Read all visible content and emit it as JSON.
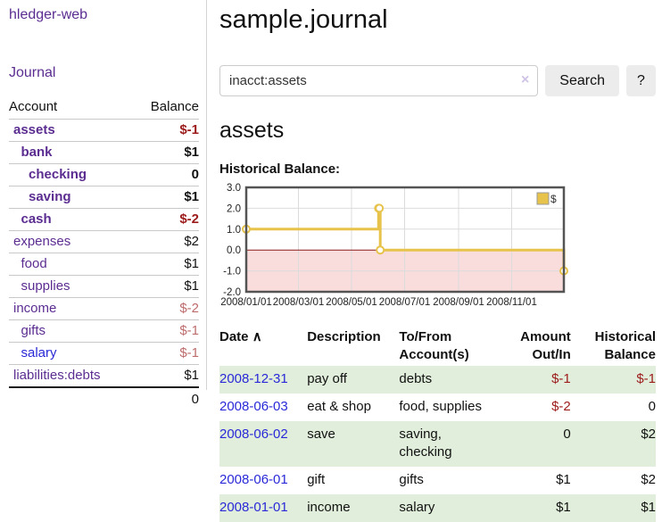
{
  "app": {
    "title": "hledger-web"
  },
  "sidebar": {
    "journal_link": "Journal",
    "accounts_table": {
      "headers": [
        "Account",
        "Balance"
      ],
      "rows": [
        {
          "account": "assets",
          "balance": "$-1",
          "depth": 1,
          "bold": true,
          "balance_style": "neg-strong",
          "link_style": "purple"
        },
        {
          "account": "bank",
          "balance": "$1",
          "depth": 2,
          "bold": true,
          "balance_style": "",
          "link_style": "purple"
        },
        {
          "account": "checking",
          "balance": "0",
          "depth": 3,
          "bold": true,
          "balance_style": "",
          "link_style": "purple"
        },
        {
          "account": "saving",
          "balance": "$1",
          "depth": 3,
          "bold": true,
          "balance_style": "",
          "link_style": "purple"
        },
        {
          "account": "cash",
          "balance": "$-2",
          "depth": 2,
          "bold": true,
          "balance_style": "neg-strong",
          "link_style": "purple"
        },
        {
          "account": "expenses",
          "balance": "$2",
          "depth": 1,
          "bold": false,
          "balance_style": "",
          "link_style": "purple"
        },
        {
          "account": "food",
          "balance": "$1",
          "depth": 2,
          "bold": false,
          "balance_style": "",
          "link_style": "purple"
        },
        {
          "account": "supplies",
          "balance": "$1",
          "depth": 2,
          "bold": false,
          "balance_style": "",
          "link_style": "purple"
        },
        {
          "account": "income",
          "balance": "$-2",
          "depth": 1,
          "bold": false,
          "balance_style": "neg-soft",
          "link_style": "purple"
        },
        {
          "account": "gifts",
          "balance": "$-1",
          "depth": 2,
          "bold": false,
          "balance_style": "neg-soft",
          "link_style": "purple"
        },
        {
          "account": "salary",
          "balance": "$-1",
          "depth": 2,
          "bold": false,
          "balance_style": "neg-soft",
          "link_style": "blue"
        },
        {
          "account": "liabilities:debts",
          "balance": "$1",
          "depth": 1,
          "bold": false,
          "balance_style": "",
          "link_style": "purple"
        }
      ],
      "total": "0"
    }
  },
  "header": {
    "title": "sample.journal"
  },
  "search": {
    "value": "inacct:assets",
    "clear_icon": "×",
    "button_label": "Search",
    "help_label": "?"
  },
  "main": {
    "account_heading": "assets",
    "chart_label": "Historical Balance:"
  },
  "chart_data": {
    "type": "line",
    "title": "Historical Balance",
    "step": true,
    "series": [
      {
        "name": "$",
        "points": [
          [
            "2008-01-01",
            1
          ],
          [
            "2008-06-01",
            2
          ],
          [
            "2008-06-02",
            2
          ],
          [
            "2008-06-03",
            0
          ],
          [
            "2008-12-31",
            -1
          ]
        ]
      }
    ],
    "x_range": [
      "2008-01-01",
      "2008-12-31"
    ],
    "ylim": [
      -2,
      3
    ],
    "y_ticks": [
      3,
      2,
      1,
      0,
      -1,
      -2
    ],
    "x_ticks": [
      "2008/01/01",
      "2008/03/01",
      "2008/05/01",
      "2008/07/01",
      "2008/09/01",
      "2008/11/01"
    ],
    "legend": {
      "label": "$",
      "position": "top-right"
    },
    "grid": true,
    "line_color": "#e7c34b",
    "negative_region_fill": "#f9dcdc",
    "zero_line_color": "#8b1a1a"
  },
  "register_table": {
    "sort_icon": "∧",
    "headers": {
      "date": "Date",
      "description": "Description",
      "accounts": "To/From Account(s)",
      "amount": "Amount Out/In",
      "balance": "Historical Balance"
    },
    "rows": [
      {
        "date": "2008-12-31",
        "description": "pay off",
        "accounts": "debts",
        "amount": "$-1",
        "amount_style": "neg-strong",
        "balance": "$-1",
        "balance_style": "neg-strong",
        "shaded": true
      },
      {
        "date": "2008-06-03",
        "description": "eat & shop",
        "accounts": "food, supplies",
        "amount": "$-2",
        "amount_style": "neg-strong",
        "balance": "0",
        "balance_style": "",
        "shaded": false
      },
      {
        "date": "2008-06-02",
        "description": "save",
        "accounts": "saving,\nchecking",
        "amount": "0",
        "amount_style": "",
        "balance": "$2",
        "balance_style": "",
        "shaded": true
      },
      {
        "date": "2008-06-01",
        "description": "gift",
        "accounts": "gifts",
        "amount": "$1",
        "amount_style": "",
        "balance": "$2",
        "balance_style": "",
        "shaded": false
      },
      {
        "date": "2008-01-01",
        "description": "income",
        "accounts": "salary",
        "amount": "$1",
        "amount_style": "",
        "balance": "$1",
        "balance_style": "",
        "shaded": true
      }
    ]
  },
  "colors": {
    "link_purple": "#5b2d91",
    "link_blue": "#2a2ad8",
    "negative_strong": "#9c1b1b",
    "negative_soft": "#bd6c6c",
    "row_green": "#e1eedb",
    "chart_gold": "#e7c34b",
    "chart_negative_fill": "#f9dcdc",
    "chart_zero_line": "#8b1a1a"
  }
}
